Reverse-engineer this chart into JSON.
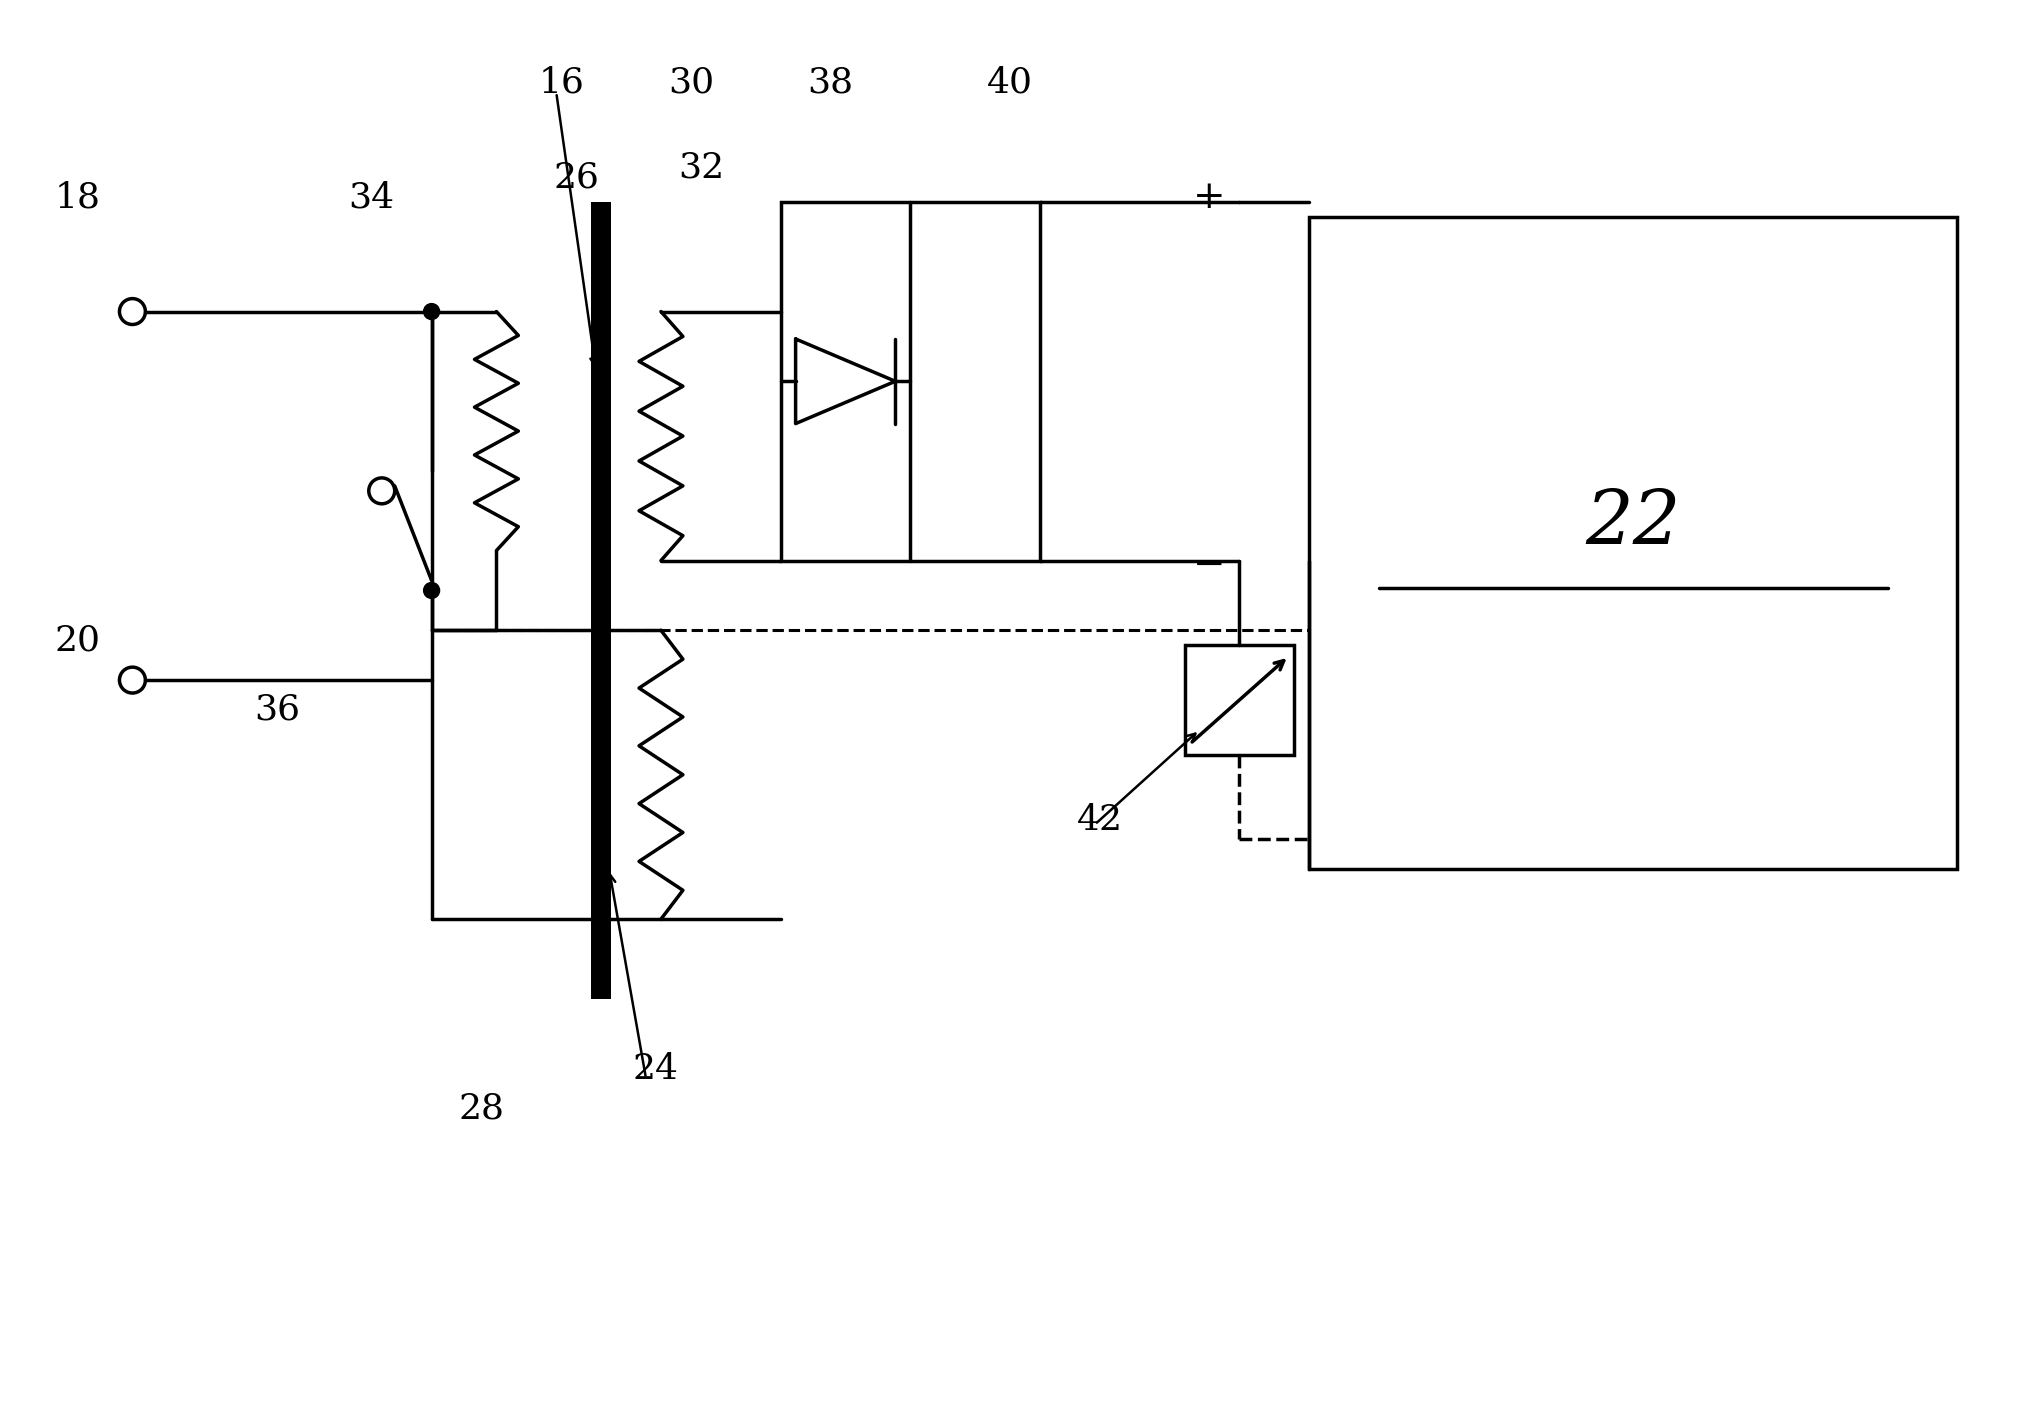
{
  "bg_color": "#ffffff",
  "line_color": "#000000",
  "lw": 2.2,
  "lw_thick": 2.5,
  "figsize": [
    20.3,
    14.08
  ],
  "dpi": 100,
  "label_fontsize": 26
}
